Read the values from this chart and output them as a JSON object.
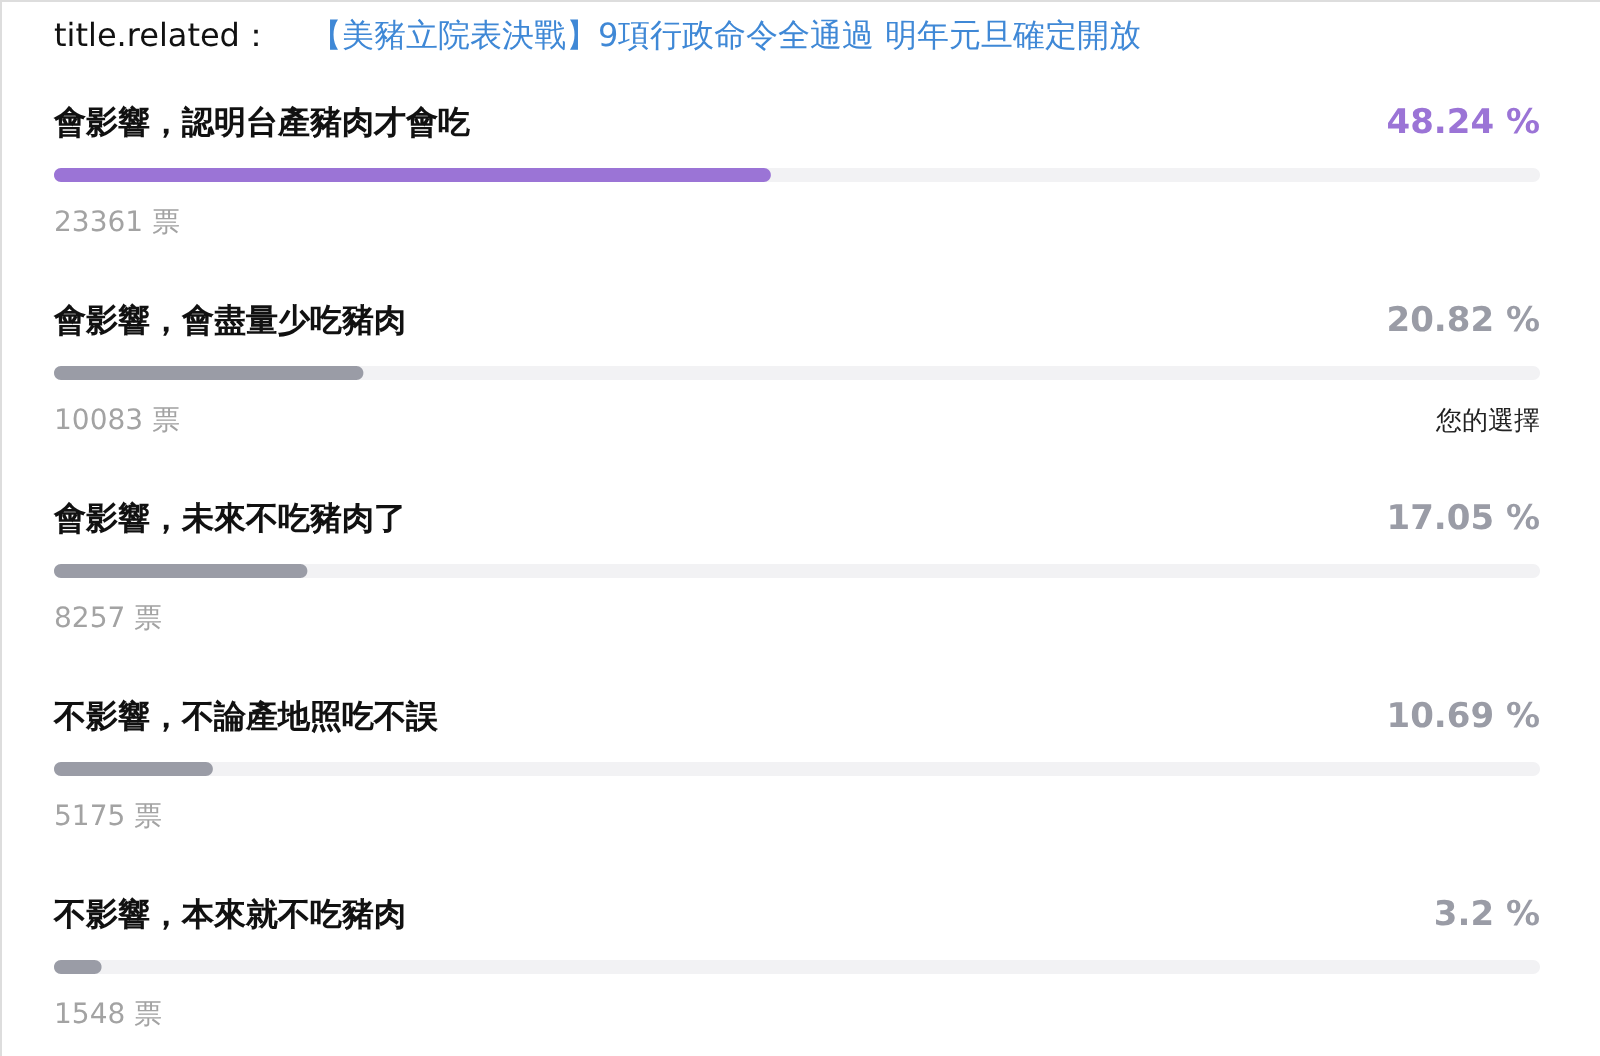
{
  "chart_data": {
    "type": "bar",
    "orientation": "horizontal",
    "title": "title.related：",
    "subtitle": "【美豬立院表決戰】9項行政命令全通過 明年元旦確定開放",
    "categories": [
      "會影響，認明台產豬肉才會吃",
      "會影響，會盡量少吃豬肉",
      "會影響，未來不吃豬肉了",
      "不影響，不論產地照吃不誤",
      "不影響，本來就不吃豬肉"
    ],
    "values": [
      48.24,
      20.82,
      17.05,
      10.69,
      3.2
    ],
    "value_labels": [
      "48.24 %",
      "20.82 %",
      "17.05 %",
      "10.69 %",
      "3.2 %"
    ],
    "colors": [
      "#9b74d6",
      "#9a9ca6",
      "#9a9ca6",
      "#9a9ca6",
      "#9a9ca6"
    ],
    "xlim": [
      0,
      100
    ],
    "tick_labels": false,
    "grid": false,
    "annotations": [
      "23361 票",
      "10083 票",
      "8257 票",
      "5175 票",
      "1548 票",
      "您的選擇"
    ]
  }
}
